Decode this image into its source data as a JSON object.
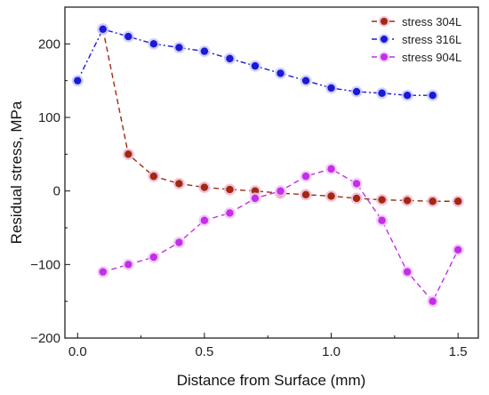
{
  "chart_data": {
    "type": "line",
    "xlabel": "Distance from Surface (mm)",
    "ylabel": "Residual stress, MPa",
    "xlim": [
      -0.05,
      1.58
    ],
    "ylim": [
      -200,
      250
    ],
    "xticks": [
      0.0,
      0.5,
      1.0,
      1.5
    ],
    "xtick_labels": [
      "0.0",
      "0.5",
      "1.0",
      "1.5"
    ],
    "yticks": [
      -200,
      -100,
      0,
      100,
      200
    ],
    "ytick_labels": [
      "−200",
      "−100",
      "0",
      "100",
      "200"
    ],
    "grid": false,
    "legend_position": "top-right",
    "series": [
      {
        "name": "stress 304L",
        "color": "#a02a10",
        "marker_halo": "#f2b6d6",
        "line_style": "dashed",
        "x": [
          0.1,
          0.2,
          0.3,
          0.4,
          0.5,
          0.6,
          0.7,
          0.8,
          0.9,
          1.0,
          1.1,
          1.2,
          1.3,
          1.4,
          1.5
        ],
        "y": [
          220,
          50,
          20,
          10,
          5,
          2,
          0,
          -3,
          -5,
          -7,
          -10,
          -12,
          -13,
          -14,
          -14
        ]
      },
      {
        "name": "stress 316L",
        "color": "#1a1ad6",
        "marker_halo": "#c9c9ff",
        "line_style": "dash-dot",
        "x": [
          0.0,
          0.1,
          0.2,
          0.3,
          0.4,
          0.5,
          0.6,
          0.7,
          0.8,
          0.9,
          1.0,
          1.1,
          1.2,
          1.3,
          1.4
        ],
        "y": [
          150,
          220,
          210,
          200,
          195,
          190,
          180,
          170,
          160,
          150,
          140,
          135,
          133,
          130,
          130
        ]
      },
      {
        "name": "stress 904L",
        "color": "#c42ee8",
        "marker_halo": "#f0c6f7",
        "line_style": "dashed",
        "x": [
          0.1,
          0.2,
          0.3,
          0.4,
          0.5,
          0.6,
          0.7,
          0.8,
          0.9,
          1.0,
          1.1,
          1.2,
          1.3,
          1.4,
          1.5
        ],
        "y": [
          -110,
          -100,
          -90,
          -70,
          -40,
          -30,
          -10,
          0,
          20,
          30,
          10,
          -40,
          -110,
          -150,
          -80
        ]
      }
    ]
  }
}
